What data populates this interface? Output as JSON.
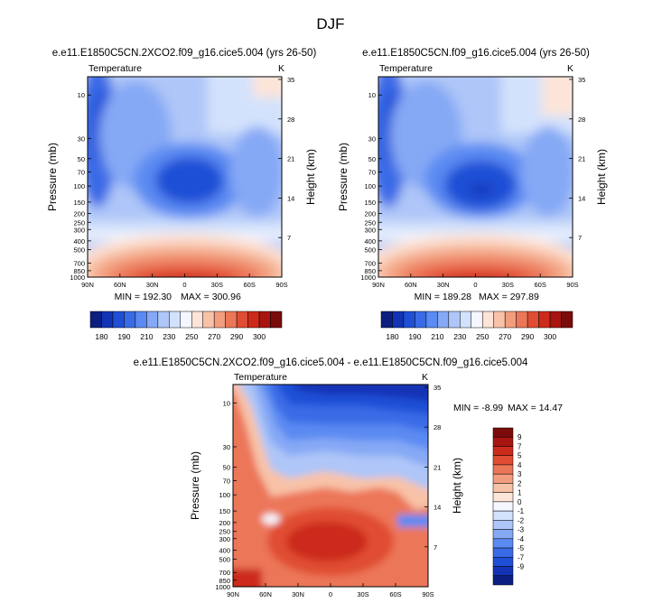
{
  "page_title": "DJF",
  "colors": {
    "temp_palette": [
      "#0a1f7f",
      "#1233b5",
      "#1f4fd6",
      "#3a6be6",
      "#5a8af2",
      "#86a9f5",
      "#aec6f8",
      "#d3e2fc",
      "#f4f7ff",
      "#fde4d8",
      "#f8c2a8",
      "#f29d7d",
      "#ec7658",
      "#e04d33",
      "#cc2a1a",
      "#a81410",
      "#7a0b0b"
    ],
    "diff_palette": [
      "#0a1f7f",
      "#1233b5",
      "#1f4fd6",
      "#3a6be6",
      "#5a8af2",
      "#86a9f5",
      "#aec6f8",
      "#d3e2fc",
      "#f4f7ff",
      "#fde4d8",
      "#f8c2a8",
      "#f29d7d",
      "#ec7658",
      "#e04d33",
      "#cc2a1a",
      "#a81410",
      "#7a0b0b"
    ]
  },
  "chart_data": [
    {
      "type": "heatmap",
      "title": "e.e11.E1850C5CN.2XCO2.f09_g16.cice5.004 (yrs 26-50)",
      "variable": "Temperature",
      "units": "K",
      "xlabel": "",
      "ylabel": "Pressure (mb)",
      "y2label": "Height (km)",
      "x_ticks": [
        "90N",
        "60N",
        "30N",
        "0",
        "30S",
        "60S",
        "90S"
      ],
      "y_ticks": [
        "10",
        "30",
        "50",
        "70",
        "100",
        "150",
        "200",
        "250",
        "300",
        "400",
        "500",
        "700",
        "850",
        "1000"
      ],
      "y2_ticks": [
        "35",
        "28",
        "21",
        "14",
        "7"
      ],
      "min_label": "MIN = 192.30",
      "max_label": "MAX = 300.96",
      "min": 192.3,
      "max": 300.96,
      "colorbar_labels": [
        "180",
        "190",
        "210",
        "230",
        "250",
        "270",
        "290",
        "300"
      ]
    },
    {
      "type": "heatmap",
      "title": "e.e11.E1850C5CN.f09_g16.cice5.004 (yrs 26-50)",
      "variable": "Temperature",
      "units": "K",
      "xlabel": "",
      "ylabel": "Pressure (mb)",
      "y2label": "Height (km)",
      "x_ticks": [
        "90N",
        "60N",
        "30N",
        "0",
        "30S",
        "60S",
        "90S"
      ],
      "y_ticks": [
        "10",
        "30",
        "50",
        "70",
        "100",
        "150",
        "200",
        "250",
        "300",
        "400",
        "500",
        "700",
        "850",
        "1000"
      ],
      "y2_ticks": [
        "35",
        "28",
        "21",
        "14",
        "7"
      ],
      "min_label": "MIN = 189.28",
      "max_label": "MAX = 297.89",
      "min": 189.28,
      "max": 297.89,
      "colorbar_labels": [
        "180",
        "190",
        "210",
        "230",
        "250",
        "270",
        "290",
        "300"
      ]
    },
    {
      "type": "heatmap",
      "title": "e.e11.E1850C5CN.2XCO2.f09_g16.cice5.004 - e.e11.E1850C5CN.f09_g16.cice5.004",
      "variable": "Temperature",
      "units": "K",
      "xlabel": "",
      "ylabel": "Pressure (mb)",
      "y2label": "Height (km)",
      "x_ticks": [
        "90N",
        "60N",
        "30N",
        "0",
        "30S",
        "60S",
        "90S"
      ],
      "y_ticks": [
        "10",
        "30",
        "50",
        "70",
        "100",
        "150",
        "200",
        "250",
        "300",
        "400",
        "500",
        "700",
        "850",
        "1000"
      ],
      "y2_ticks": [
        "35",
        "28",
        "21",
        "14",
        "7"
      ],
      "min_label": "MIN = -8.99",
      "max_label": "MAX = 14.47",
      "min": -8.99,
      "max": 14.47,
      "colorbar_labels": [
        "9",
        "7",
        "5",
        "4",
        "3",
        "2",
        "1",
        "0",
        "-1",
        "-2",
        "-3",
        "-4",
        "-5",
        "-7",
        "-9"
      ]
    }
  ]
}
